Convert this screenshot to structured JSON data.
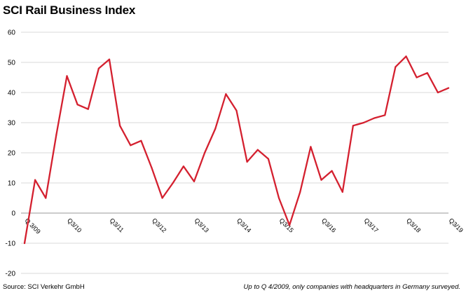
{
  "chart_data": {
    "type": "line",
    "title": "SCI Rail Business Index",
    "xlabel": "",
    "ylabel": "",
    "ylim": [
      -20,
      60
    ],
    "yticks": [
      -20,
      -10,
      0,
      10,
      20,
      30,
      40,
      50,
      60
    ],
    "grid": true,
    "x_count": 41,
    "x_tick_labels": [
      {
        "index": 0,
        "label": "Q 3/09"
      },
      {
        "index": 4,
        "label": "Q3/10"
      },
      {
        "index": 8,
        "label": "Q3/11"
      },
      {
        "index": 12,
        "label": "Q3/12"
      },
      {
        "index": 16,
        "label": "Q3/13"
      },
      {
        "index": 20,
        "label": "Q3/14"
      },
      {
        "index": 24,
        "label": "Q3/15"
      },
      {
        "index": 28,
        "label": "Q3/16"
      },
      {
        "index": 32,
        "label": "Q3/17"
      },
      {
        "index": 36,
        "label": "Q3/18"
      },
      {
        "index": 40,
        "label": "Q3/19"
      }
    ],
    "series": [
      {
        "name": "SCI Rail Business Index",
        "color": "#d4202f",
        "values": [
          -10,
          11,
          5,
          26,
          45.5,
          36,
          34.5,
          48,
          51,
          29,
          22.5,
          24,
          15,
          5,
          10,
          15.5,
          10.5,
          20,
          28,
          39.5,
          34,
          17,
          21,
          18,
          5,
          -4,
          7,
          22,
          11,
          14,
          7,
          29,
          30,
          31.5,
          32.5,
          48.5,
          52,
          45,
          46.5,
          40,
          41.5
        ]
      }
    ]
  },
  "footer": {
    "source": "Source: SCI Verkehr GmbH",
    "note": "Up to Q 4/2009, only companies with headquarters in Germany surveyed."
  }
}
